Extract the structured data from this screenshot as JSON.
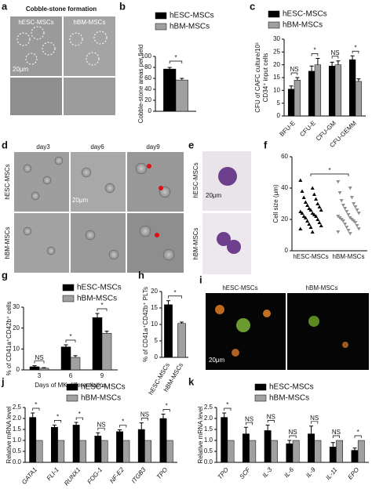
{
  "image_panels": {
    "a": {
      "letter": "a",
      "title": "Cobble-stone formation",
      "columns": [
        "hESC-MSCs",
        "hBM-MSCs"
      ],
      "scale": "20μm"
    },
    "d": {
      "letter": "d",
      "columns": [
        "day3",
        "day6",
        "day9"
      ],
      "rows": [
        "hESC-MSCs",
        "hBM-MSCs"
      ],
      "scale": "20μm"
    },
    "e": {
      "letter": "e",
      "rows": [
        "hESC-MSCs",
        "hBM-MSCs"
      ],
      "scale": "20μm"
    },
    "i": {
      "letter": "i",
      "columns": [
        "hESC-MSCs",
        "hBM-MSCs"
      ],
      "scale": "20μm"
    }
  },
  "chart_data": [
    {
      "type": "bar",
      "panel": "b",
      "categories": [
        null
      ],
      "ylabel": [
        "Cobble-stone areas per field"
      ],
      "series": [
        {
          "name": "hESC-MSCs",
          "color": "#000000",
          "values": [
            77
          ],
          "errors": [
            3
          ]
        },
        {
          "name": "hBM-MSCs",
          "color": "#a0a0a0",
          "values": [
            57
          ],
          "errors": [
            3
          ]
        }
      ],
      "annotation": "*",
      "ylim": [
        0,
        100
      ],
      "yticks": [
        0,
        20,
        40,
        60,
        80,
        100
      ]
    },
    {
      "type": "bar",
      "panel": "c",
      "categories": [
        "BFU-E",
        "CFU-E",
        "CFU-GM",
        "CFU-GEMM"
      ],
      "ylabel": [
        "CFU of CAFC culture/10³",
        "CD34⁺ input cells"
      ],
      "series": [
        {
          "name": "hESC-MSCs",
          "color": "#000000",
          "values": [
            10.5,
            17.5,
            19.5,
            22
          ],
          "errors": [
            1.2,
            2,
            1.5,
            1.5
          ]
        },
        {
          "name": "hBM-MSCs",
          "color": "#a0a0a0",
          "values": [
            14,
            20,
            20,
            13.5
          ],
          "errors": [
            1,
            2.5,
            1.5,
            1
          ]
        }
      ],
      "annotations": [
        "NS",
        "*",
        "NS",
        "*"
      ],
      "ylim": [
        0,
        30
      ],
      "yticks": [
        0,
        5,
        10,
        15,
        20,
        25,
        30
      ]
    },
    {
      "type": "strip",
      "panel": "f",
      "categories": [
        "hESC-MSCs",
        "hBM-MSCs"
      ],
      "ylabel": [
        "Cell size (μm)"
      ],
      "series": [
        {
          "name": "hESC-MSCs",
          "color": "#000000",
          "marker": "triangle",
          "values": [
            45,
            40,
            38,
            36,
            34,
            33,
            31,
            30,
            29,
            28,
            27,
            26,
            26,
            25,
            24,
            24,
            23,
            22,
            22,
            21,
            20,
            19,
            18,
            17,
            16,
            15,
            14,
            12
          ]
        },
        {
          "name": "hBM-MSCs",
          "color": "#909090",
          "marker": "triangle-down",
          "values": [
            44,
            40,
            37,
            34,
            32,
            30,
            29,
            28,
            27,
            26,
            25,
            24,
            23,
            22,
            21,
            21,
            20,
            20,
            19,
            19,
            18,
            17,
            16,
            15,
            14,
            13,
            12,
            11
          ]
        }
      ],
      "annotation": "*",
      "ylim": [
        0,
        60
      ],
      "yticks": [
        0,
        20,
        40,
        60
      ]
    },
    {
      "type": "bar",
      "panel": "g",
      "categories": [
        "3",
        "6",
        "9"
      ],
      "xlabel": "Days of MK differentiation",
      "ylabel": [
        "% of CD41a⁺CD42b⁺ cells"
      ],
      "series": [
        {
          "name": "hESC-MSCs",
          "color": "#000000",
          "values": [
            1.5,
            11,
            25
          ],
          "errors": [
            0.5,
            1,
            2
          ]
        },
        {
          "name": "hBM-MSCs",
          "color": "#a0a0a0",
          "values": [
            0.8,
            6,
            17.5
          ],
          "errors": [
            0.3,
            0.8,
            1
          ]
        }
      ],
      "annotations": [
        "NS",
        "*",
        "*"
      ],
      "ylim": [
        0,
        30
      ],
      "yticks": [
        0,
        10,
        20,
        30
      ]
    },
    {
      "type": "bar",
      "panel": "h",
      "categories": [
        "hESC-MSCs",
        "hBM-MSCs"
      ],
      "ylabel": [
        "% of CD41a⁺CD42b⁺ PLTs"
      ],
      "values": [
        16,
        10.3
      ],
      "errors": [
        1.2,
        0.4
      ],
      "colors": [
        "#000000",
        "#a0a0a0"
      ],
      "annotation": "*",
      "ylim": [
        0,
        20
      ],
      "yticks": [
        0,
        5,
        10,
        15,
        20
      ]
    },
    {
      "type": "bar",
      "panel": "j",
      "categories": [
        "GATA1",
        "FLI-1",
        "RUNX1",
        "FOG-1",
        "NF-E2",
        "ITGB3",
        "TPO"
      ],
      "ylabel": [
        "Relative mRNA level"
      ],
      "series": [
        {
          "name": "hESC-MSCs",
          "color": "#000000",
          "values": [
            2.05,
            1.6,
            1.7,
            1.2,
            1.4,
            1.5,
            2.0
          ],
          "errors": [
            0.2,
            0.1,
            0.12,
            0.15,
            0.08,
            0.3,
            0.2
          ]
        },
        {
          "name": "hBM-MSCs",
          "color": "#a0a0a0",
          "values": [
            1,
            1,
            1,
            1,
            1,
            1,
            1
          ],
          "errors": [
            0,
            0,
            0,
            0,
            0,
            0,
            0
          ]
        }
      ],
      "annotations": [
        "*",
        "*",
        "*",
        "NS",
        "*",
        "NS",
        "*"
      ],
      "ylim": [
        0,
        2.5
      ],
      "yticks": [
        {
          "value": 0,
          "label": "0.0"
        },
        0.5,
        {
          "value": 1,
          "label": "1.0"
        },
        1.5,
        {
          "value": 2,
          "label": "2.0"
        },
        2.5
      ]
    },
    {
      "type": "bar",
      "panel": "k",
      "categories": [
        "TPO",
        "SCF",
        "IL-3",
        "IL-6",
        "IL-9",
        "IL-11",
        "EPO"
      ],
      "ylabel": [
        "Relative mRNA level"
      ],
      "series": [
        {
          "name": "hESC-MSCs",
          "color": "#000000",
          "values": [
            2.05,
            1.3,
            1.45,
            0.85,
            1.3,
            0.7,
            0.55
          ],
          "errors": [
            0.2,
            0.3,
            0.25,
            0.15,
            0.35,
            0.2,
            0.1
          ]
        },
        {
          "name": "hBM-MSCs",
          "color": "#a0a0a0",
          "values": [
            1,
            1,
            1,
            1,
            1,
            1,
            1
          ],
          "errors": [
            0,
            0,
            0,
            0,
            0,
            0,
            0
          ]
        }
      ],
      "annotations": [
        "*",
        "NS",
        "NS",
        "NS",
        "NS",
        "NS",
        "*"
      ],
      "ylim": [
        0,
        2.5
      ],
      "yticks": [
        {
          "value": 0,
          "label": "0.0"
        },
        0.5,
        {
          "value": 1,
          "label": "1.0"
        },
        1.5,
        {
          "value": 2,
          "label": "2.0"
        },
        2.5
      ]
    }
  ]
}
